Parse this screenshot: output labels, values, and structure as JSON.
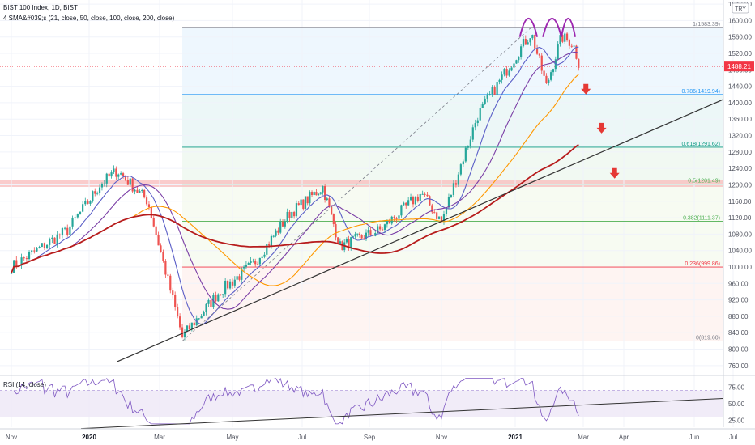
{
  "header": {
    "title": "BIST 100 Index, 1D, BIST",
    "indicator": "4 SMA&#039;s (21, close, 50, close, 100, close, 200, close)",
    "currency": "TRY"
  },
  "rsi_panel": {
    "label": "RSI (14, close)"
  },
  "chart_data": [
    {
      "type": "candlestick",
      "y_ticks": [
        760,
        800,
        840,
        880,
        920,
        960,
        1000,
        1040,
        1080,
        1120,
        1160,
        1200,
        1240,
        1280,
        1320,
        1360,
        1400,
        1440,
        1480,
        1520,
        1560,
        1600,
        1640
      ],
      "ylim": [
        740,
        1650
      ],
      "x_month_labels": [
        "Nov",
        "2020",
        "Mar",
        "May",
        "Jul",
        "Sep",
        "Nov",
        "2021",
        "Mar",
        "Apr",
        "Jun",
        "Jul"
      ],
      "bold_month_labels": [
        "2020",
        "2021"
      ],
      "last_price": {
        "label": "1488.21",
        "value": 1488.21,
        "color": "#f23645"
      },
      "fibonacci": [
        {
          "label": "1(1583.39)",
          "value": 1583.39,
          "color": "#787b86"
        },
        {
          "label": "0.786(1419.94)",
          "value": 1419.94,
          "color": "#2196f3"
        },
        {
          "label": "0.618(1291.62)",
          "value": 1291.62,
          "color": "#089981"
        },
        {
          "label": "0.5(1201.49)",
          "value": 1201.49,
          "color": "#4caf50"
        },
        {
          "label": "0.382(1111.37)",
          "value": 1111.37,
          "color": "#4caf50"
        },
        {
          "label": "0.236(999.86)",
          "value": 999.86,
          "color": "#f23645"
        },
        {
          "label": "0(819.60)",
          "value": 819.6,
          "color": "#787b86"
        }
      ],
      "resistance_zone": [
        1195,
        1212
      ],
      "annotations": [
        "head-and-shoulders arcs",
        "down arrows"
      ],
      "sma_colors": {
        "sma21": "#5b5fc7",
        "sma50": "#7b3fa6",
        "sma100": "#ff9800",
        "sma200": "#b71c1c"
      },
      "candle_colors": {
        "up": "#26a69a",
        "down": "#ef5350"
      },
      "series_close": [
        {
          "t": "2019-11-01",
          "c": 1000
        },
        {
          "t": "2019-12-15",
          "c": 1090
        },
        {
          "t": "2020-01-10",
          "c": 1200
        },
        {
          "t": "2020-01-25",
          "c": 1235
        },
        {
          "t": "2020-02-20",
          "c": 1160
        },
        {
          "t": "2020-03-20",
          "c": 830
        },
        {
          "t": "2020-04-20",
          "c": 940
        },
        {
          "t": "2020-05-20",
          "c": 1010
        },
        {
          "t": "2020-06-20",
          "c": 1130
        },
        {
          "t": "2020-07-20",
          "c": 1195
        },
        {
          "t": "2020-08-05",
          "c": 1050
        },
        {
          "t": "2020-09-10",
          "c": 1090
        },
        {
          "t": "2020-10-15",
          "c": 1180
        },
        {
          "t": "2020-11-01",
          "c": 1110
        },
        {
          "t": "2020-12-01",
          "c": 1370
        },
        {
          "t": "2021-01-05",
          "c": 1530
        },
        {
          "t": "2021-01-15",
          "c": 1570
        },
        {
          "t": "2021-01-28",
          "c": 1440
        },
        {
          "t": "2021-02-10",
          "c": 1560
        },
        {
          "t": "2021-02-20",
          "c": 1545
        },
        {
          "t": "2021-02-26",
          "c": 1488
        }
      ],
      "rsi": {
        "ticks": [
          25.0,
          50.0,
          75.0
        ],
        "tick_labels": [
          "25.00",
          "50.00",
          "75.00"
        ],
        "ylim": [
          15,
          90
        ],
        "band": [
          30,
          70
        ],
        "color": "#7e57c2"
      }
    }
  ]
}
